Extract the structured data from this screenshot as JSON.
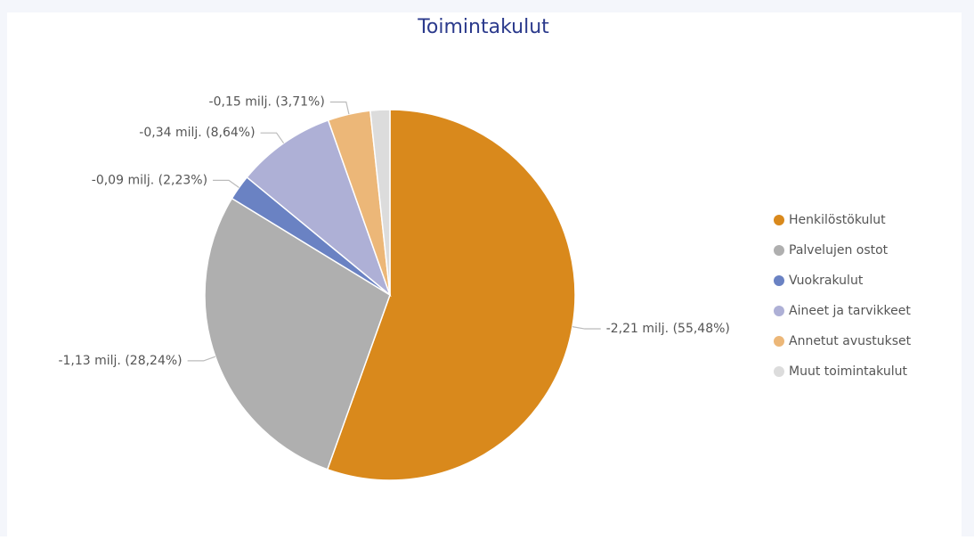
{
  "chart_data": {
    "type": "pie",
    "title": "Toimintakulut",
    "categories": [
      "Henkilöstökulut",
      "Palvelujen ostot",
      "Vuokrakulut",
      "Aineet ja tarvikkeet",
      "Annetut avustukset",
      "Muut toimintakulut"
    ],
    "values": [
      55.48,
      28.24,
      2.23,
      8.64,
      3.71,
      1.7
    ],
    "value_labels": [
      "-2,21 milj. (55,48%)",
      "-1,13 milj. (28,24%)",
      "-0,09 milj. (2,23%)",
      "-0,34 milj. (8,64%)",
      "-0,15 milj. (3,71%)",
      null
    ],
    "colors": [
      "#d9891c",
      "#afafaf",
      "#6a82c3",
      "#aeb0d6",
      "#ecb778",
      "#dcdcdc"
    ],
    "legend": "right"
  }
}
